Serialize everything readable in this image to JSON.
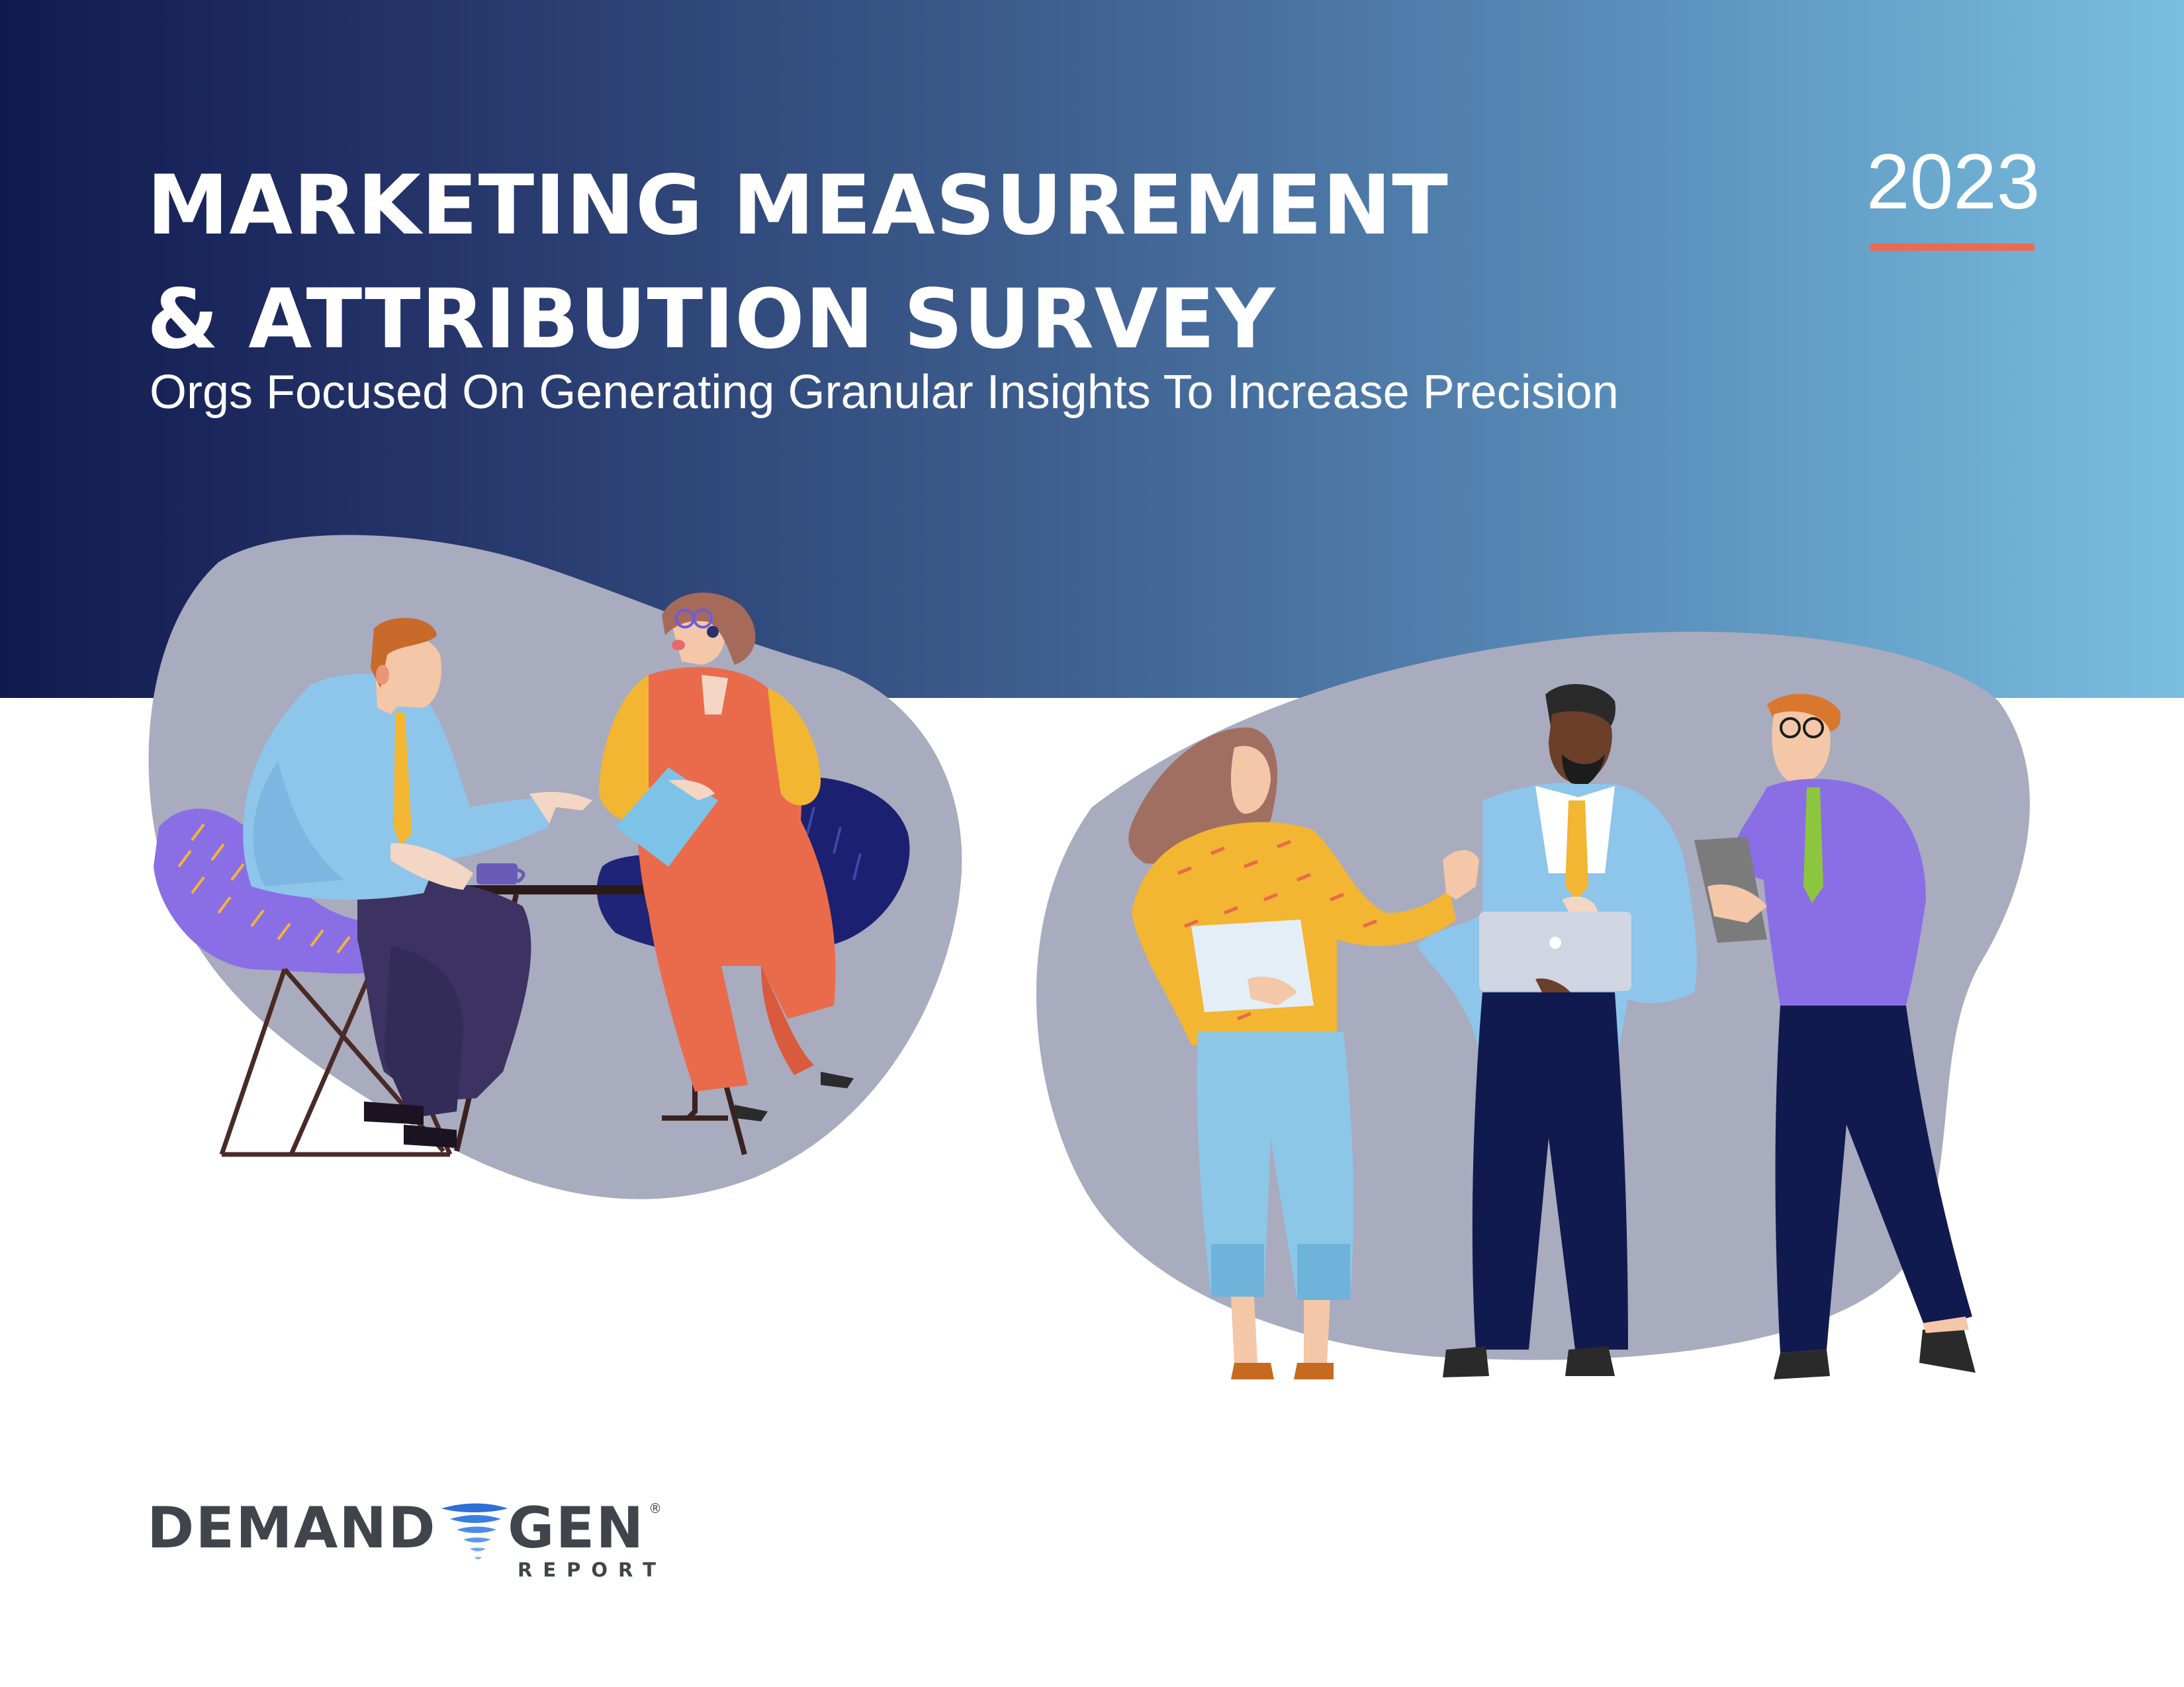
{
  "header": {
    "title_line1": "MARKETING MEASUREMENT",
    "title_line2": "& ATTRIBUTION SURVEY",
    "subtitle": "Orgs Focused On Generating Granular Insights To Increase Precision",
    "year": "2023"
  },
  "logo": {
    "word1": "DEMAND",
    "word2": "GEN",
    "registered": "®",
    "tagline": "REPORT"
  },
  "colors": {
    "banner_start": "#111a4f",
    "banner_end": "#79bedf",
    "accent_rule": "#ec6a51",
    "blob": "#a9abbe",
    "logo_text": "#3f454b",
    "logo_swoosh": "#2f6fd6"
  },
  "illustrations": [
    {
      "name": "cafe-meeting-illustration",
      "description_icon": "two-people-at-table-icon"
    },
    {
      "name": "standing-team-illustration",
      "description_icon": "three-colleagues-icon"
    }
  ]
}
